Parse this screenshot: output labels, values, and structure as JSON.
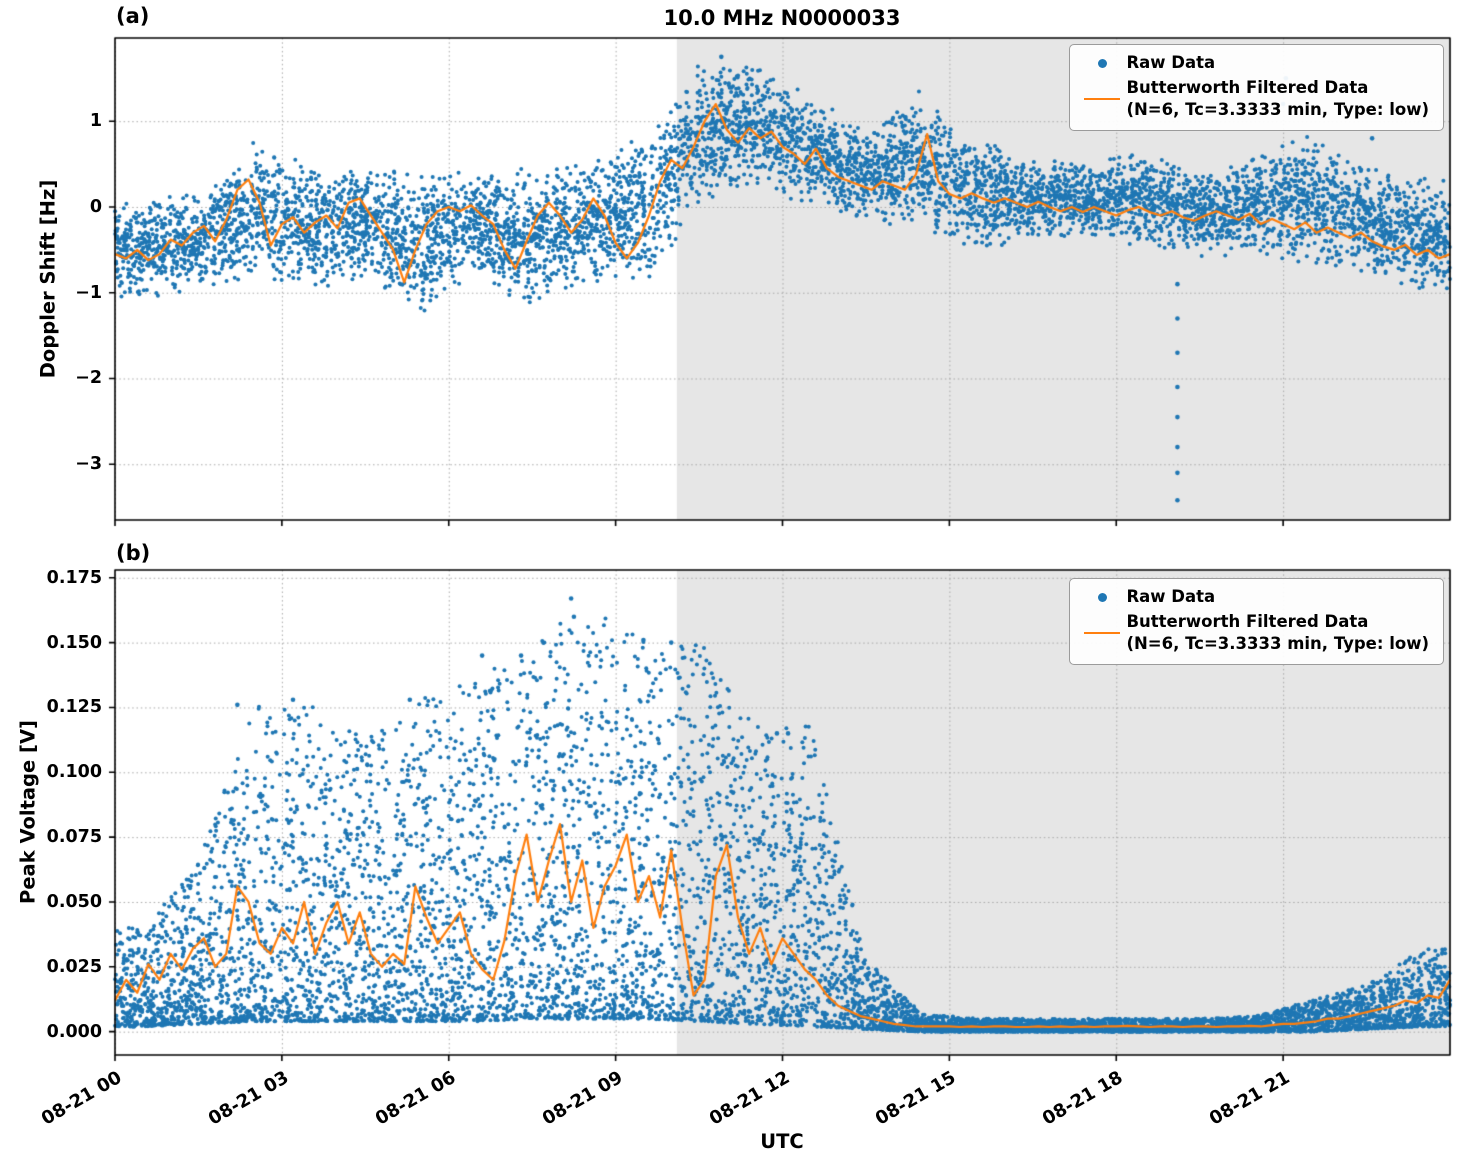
{
  "figure": {
    "title": "10.0 MHz N0000033",
    "panel_a_label": "(a)",
    "panel_b_label": "(b)",
    "xlabel": "UTC",
    "colors": {
      "raw": "#1f77b4",
      "filtered": "#ff7f0e",
      "shade": "#e6e6e6",
      "grid": "#a8a8a8",
      "spine": "#000000"
    }
  },
  "legend": {
    "raw_label": "Raw Data",
    "filtered_label_line1": "Butterworth Filtered Data",
    "filtered_label_line2": "(N=6, Tc=3.3333 min, Type: low)"
  },
  "chart_data": [
    {
      "type": "scatter",
      "panel": "a",
      "title": "10.0 MHz N0000033",
      "xlabel": "UTC",
      "ylabel": "Doppler Shift [Hz]",
      "xlim": [
        0,
        24
      ],
      "ylim": [
        -3.65,
        1.97
      ],
      "grid": true,
      "legend_loc": "upper right",
      "xticks": {
        "hours": [
          0,
          3,
          6,
          9,
          12,
          15,
          18,
          21
        ],
        "labels": [
          "08-21 00",
          "08-21 03",
          "08-21 06",
          "08-21 09",
          "08-21 12",
          "08-21 15",
          "08-21 18",
          "08-21 21"
        ]
      },
      "yticks": {
        "values": [
          1,
          0,
          -1,
          -2,
          -3
        ],
        "labels": [
          "1",
          "0",
          "−1",
          "−2",
          "−3"
        ]
      },
      "shaded_region": {
        "x0": 10.1,
        "x1": 24
      },
      "series": [
        {
          "name": "Raw Data",
          "plot": "scatter",
          "marker_color": "#1f77b4",
          "seed": 42,
          "points_per_hour": 280,
          "distribution": "center",
          "bias_exponent": 1,
          "envelope_hourly": [
            [
              -1.1,
              0.1
            ],
            [
              -1.0,
              0.2
            ],
            [
              -0.9,
              0.78
            ],
            [
              -1.0,
              0.5
            ],
            [
              -0.9,
              0.5
            ],
            [
              -1.3,
              0.4
            ],
            [
              -0.8,
              0.5
            ],
            [
              -1.25,
              0.45
            ],
            [
              -0.9,
              0.6
            ],
            [
              -1.0,
              0.9
            ],
            [
              0.0,
              1.7
            ],
            [
              0.2,
              1.72
            ],
            [
              0.0,
              1.3
            ],
            [
              -0.2,
              0.9
            ],
            [
              -0.3,
              1.45
            ],
            [
              -0.6,
              0.8
            ],
            [
              -0.4,
              0.6
            ],
            [
              -0.35,
              0.5
            ],
            [
              -0.5,
              0.7
            ],
            [
              -0.6,
              0.5
            ],
            [
              -0.6,
              0.6
            ],
            [
              -0.7,
              0.9
            ],
            [
              -0.8,
              0.5
            ],
            [
              -1.05,
              0.35
            ]
          ],
          "outliers": [
            [
              10.9,
              1.75
            ],
            [
              19.1,
              -0.9
            ],
            [
              19.1,
              -1.3
            ],
            [
              19.1,
              -1.7
            ],
            [
              19.1,
              -2.1
            ],
            [
              19.1,
              -2.45
            ],
            [
              19.1,
              -2.8
            ],
            [
              19.1,
              -3.1
            ],
            [
              19.1,
              -3.42
            ],
            [
              21.0,
              1.2
            ],
            [
              21.05,
              1.5
            ],
            [
              22.6,
              0.8
            ]
          ]
        },
        {
          "name": "Butterworth Filtered Data (N=6, Tc=3.3333 min, Type: low)",
          "plot": "line",
          "color": "#ff7f0e",
          "x0": 0,
          "dx": 0.2,
          "y": [
            -0.55,
            -0.6,
            -0.5,
            -0.62,
            -0.55,
            -0.38,
            -0.45,
            -0.3,
            -0.22,
            -0.4,
            -0.15,
            0.2,
            0.32,
            0.05,
            -0.45,
            -0.2,
            -0.12,
            -0.3,
            -0.18,
            -0.1,
            -0.25,
            0.05,
            0.1,
            -0.1,
            -0.3,
            -0.5,
            -0.88,
            -0.5,
            -0.2,
            -0.05,
            0.0,
            -0.05,
            0.02,
            -0.1,
            -0.2,
            -0.5,
            -0.72,
            -0.4,
            -0.1,
            0.05,
            -0.1,
            -0.3,
            -0.15,
            0.1,
            -0.1,
            -0.42,
            -0.6,
            -0.42,
            -0.1,
            0.3,
            0.55,
            0.45,
            0.7,
            1.0,
            1.2,
            0.9,
            0.75,
            0.92,
            0.8,
            0.88,
            0.7,
            0.62,
            0.5,
            0.68,
            0.45,
            0.35,
            0.3,
            0.25,
            0.2,
            0.3,
            0.25,
            0.2,
            0.38,
            0.85,
            0.3,
            0.15,
            0.1,
            0.16,
            0.1,
            0.05,
            0.1,
            0.05,
            0.0,
            0.06,
            0.0,
            -0.05,
            0.0,
            -0.06,
            0.0,
            -0.05,
            -0.1,
            -0.04,
            0.0,
            -0.06,
            -0.1,
            -0.05,
            -0.12,
            -0.16,
            -0.1,
            -0.05,
            -0.1,
            -0.15,
            -0.08,
            -0.2,
            -0.14,
            -0.2,
            -0.26,
            -0.18,
            -0.3,
            -0.24,
            -0.3,
            -0.36,
            -0.3,
            -0.4,
            -0.46,
            -0.5,
            -0.44,
            -0.56,
            -0.5,
            -0.6,
            -0.55
          ]
        }
      ]
    },
    {
      "type": "scatter",
      "panel": "b",
      "title": "",
      "xlabel": "UTC",
      "ylabel": "Peak Voltage [V]",
      "xlim": [
        0,
        24
      ],
      "ylim": [
        -0.009,
        0.178
      ],
      "grid": true,
      "legend_loc": "upper right",
      "xticks": {
        "hours": [
          0,
          3,
          6,
          9,
          12,
          15,
          18,
          21
        ],
        "labels": [
          "08-21 00",
          "08-21 03",
          "08-21 06",
          "08-21 09",
          "08-21 12",
          "08-21 15",
          "08-21 18",
          "08-21 21"
        ]
      },
      "yticks": {
        "values": [
          0.175,
          0.15,
          0.125,
          0.1,
          0.075,
          0.05,
          0.025,
          0.0
        ],
        "labels": [
          "0.175",
          "0.150",
          "0.125",
          "0.100",
          "0.075",
          "0.050",
          "0.025",
          "0.000"
        ]
      },
      "shaded_region": {
        "x0": 10.1,
        "x1": 24
      },
      "series": [
        {
          "name": "Raw Data",
          "plot": "scatter",
          "marker_color": "#1f77b4",
          "seed": 1337,
          "points_per_hour": 340,
          "distribution": "low_biased",
          "bias_exponent": 1.8,
          "envelope_hourly": [
            [
              0.002,
              0.04
            ],
            [
              0.003,
              0.065
            ],
            [
              0.004,
              0.126
            ],
            [
              0.004,
              0.128
            ],
            [
              0.004,
              0.112
            ],
            [
              0.004,
              0.128
            ],
            [
              0.004,
              0.138
            ],
            [
              0.005,
              0.148
            ],
            [
              0.005,
              0.167
            ],
            [
              0.005,
              0.151
            ],
            [
              0.004,
              0.151
            ],
            [
              0.003,
              0.122
            ],
            [
              0.002,
              0.118
            ],
            [
              0.001,
              0.028
            ],
            [
              0.0,
              0.007
            ],
            [
              0.0,
              0.005
            ],
            [
              0.0,
              0.005
            ],
            [
              0.0,
              0.005
            ],
            [
              0.0,
              0.005
            ],
            [
              0.0,
              0.005
            ],
            [
              0.0,
              0.006
            ],
            [
              0.0,
              0.012
            ],
            [
              0.001,
              0.018
            ],
            [
              0.002,
              0.032
            ]
          ],
          "outliers": [
            [
              8.2,
              0.167
            ],
            [
              8.25,
              0.16
            ],
            [
              9.5,
              0.151
            ],
            [
              10.0,
              0.15
            ],
            [
              2.2,
              0.126
            ],
            [
              3.2,
              0.128
            ],
            [
              5.3,
              0.128
            ],
            [
              6.6,
              0.145
            ],
            [
              7.3,
              0.145
            ],
            [
              11.9,
              0.115
            ],
            [
              12.1,
              0.115
            ]
          ]
        },
        {
          "name": "Butterworth Filtered Data (N=6, Tc=3.3333 min, Type: low)",
          "plot": "line",
          "color": "#ff7f0e",
          "x0": 0,
          "dx": 0.2,
          "y": [
            0.012,
            0.02,
            0.015,
            0.026,
            0.02,
            0.03,
            0.024,
            0.032,
            0.036,
            0.025,
            0.03,
            0.056,
            0.05,
            0.034,
            0.03,
            0.04,
            0.034,
            0.05,
            0.03,
            0.042,
            0.05,
            0.034,
            0.046,
            0.03,
            0.025,
            0.03,
            0.026,
            0.056,
            0.044,
            0.034,
            0.04,
            0.046,
            0.03,
            0.024,
            0.02,
            0.035,
            0.06,
            0.076,
            0.05,
            0.066,
            0.08,
            0.05,
            0.066,
            0.04,
            0.056,
            0.064,
            0.076,
            0.05,
            0.06,
            0.044,
            0.07,
            0.04,
            0.014,
            0.02,
            0.06,
            0.072,
            0.044,
            0.03,
            0.04,
            0.026,
            0.036,
            0.03,
            0.024,
            0.02,
            0.014,
            0.01,
            0.008,
            0.006,
            0.005,
            0.004,
            0.003,
            0.0025,
            0.002,
            0.002,
            0.002,
            0.002,
            0.0018,
            0.002,
            0.0018,
            0.002,
            0.002,
            0.0018,
            0.0018,
            0.002,
            0.0018,
            0.002,
            0.0018,
            0.002,
            0.0018,
            0.002,
            0.002,
            0.0022,
            0.002,
            0.0018,
            0.002,
            0.002,
            0.0018,
            0.002,
            0.002,
            0.0018,
            0.002,
            0.002,
            0.0022,
            0.002,
            0.0025,
            0.003,
            0.003,
            0.0035,
            0.004,
            0.005,
            0.005,
            0.006,
            0.007,
            0.008,
            0.009,
            0.01,
            0.012,
            0.011,
            0.014,
            0.013,
            0.02
          ]
        }
      ]
    }
  ]
}
